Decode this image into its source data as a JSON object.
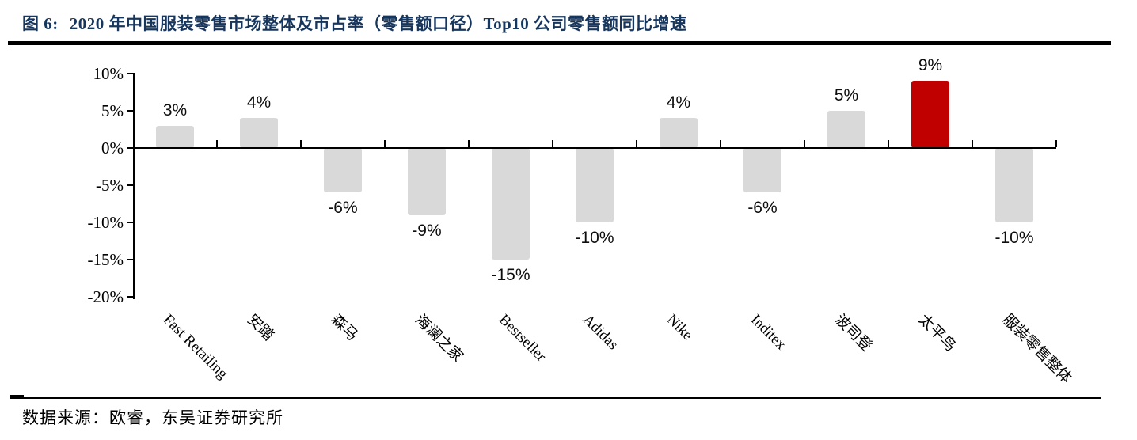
{
  "header": {
    "figure_label": "图 6:",
    "title": "2020 年中国服装零售市场整体及市占率（零售额口径）Top10 公司零售额同比增速"
  },
  "footer": {
    "source": "数据来源：欧睿，东吴证券研究所"
  },
  "colors": {
    "title_navy": "#17365d",
    "bar_gray": "#d9d9d9",
    "bar_highlight_red": "#c00000",
    "axis_black": "#000000"
  },
  "chart_data": {
    "type": "bar",
    "title": "2020 年中国服装零售市场整体及市占率（零售额口径）Top10 公司零售额同比增速",
    "categories": [
      "Fast Retailing",
      "安踏",
      "森马",
      "海澜之家",
      "Bestseller",
      "Adidas",
      "Nike",
      "Inditex",
      "波司登",
      "太平鸟",
      "服装零售整体"
    ],
    "values": [
      3,
      4,
      -6,
      -9,
      -15,
      -10,
      4,
      -6,
      5,
      9,
      -10
    ],
    "value_labels": [
      "3%",
      "4%",
      "-6%",
      "-9%",
      "-15%",
      "-10%",
      "4%",
      "-6%",
      "5%",
      "9%",
      "-10%"
    ],
    "highlight_index": 9,
    "bar_color": "#d9d9d9",
    "highlight_color": "#c00000",
    "xlabel": "",
    "ylabel": "",
    "ylim": [
      -20,
      10
    ],
    "ytick_step": 5,
    "ytick_labels": [
      "10%",
      "5%",
      "0%",
      "-5%",
      "-10%",
      "-15%",
      "-20%"
    ],
    "grid": false,
    "legend": false,
    "data_label_position": "outside-end",
    "category_label_rotation_deg": 45
  }
}
